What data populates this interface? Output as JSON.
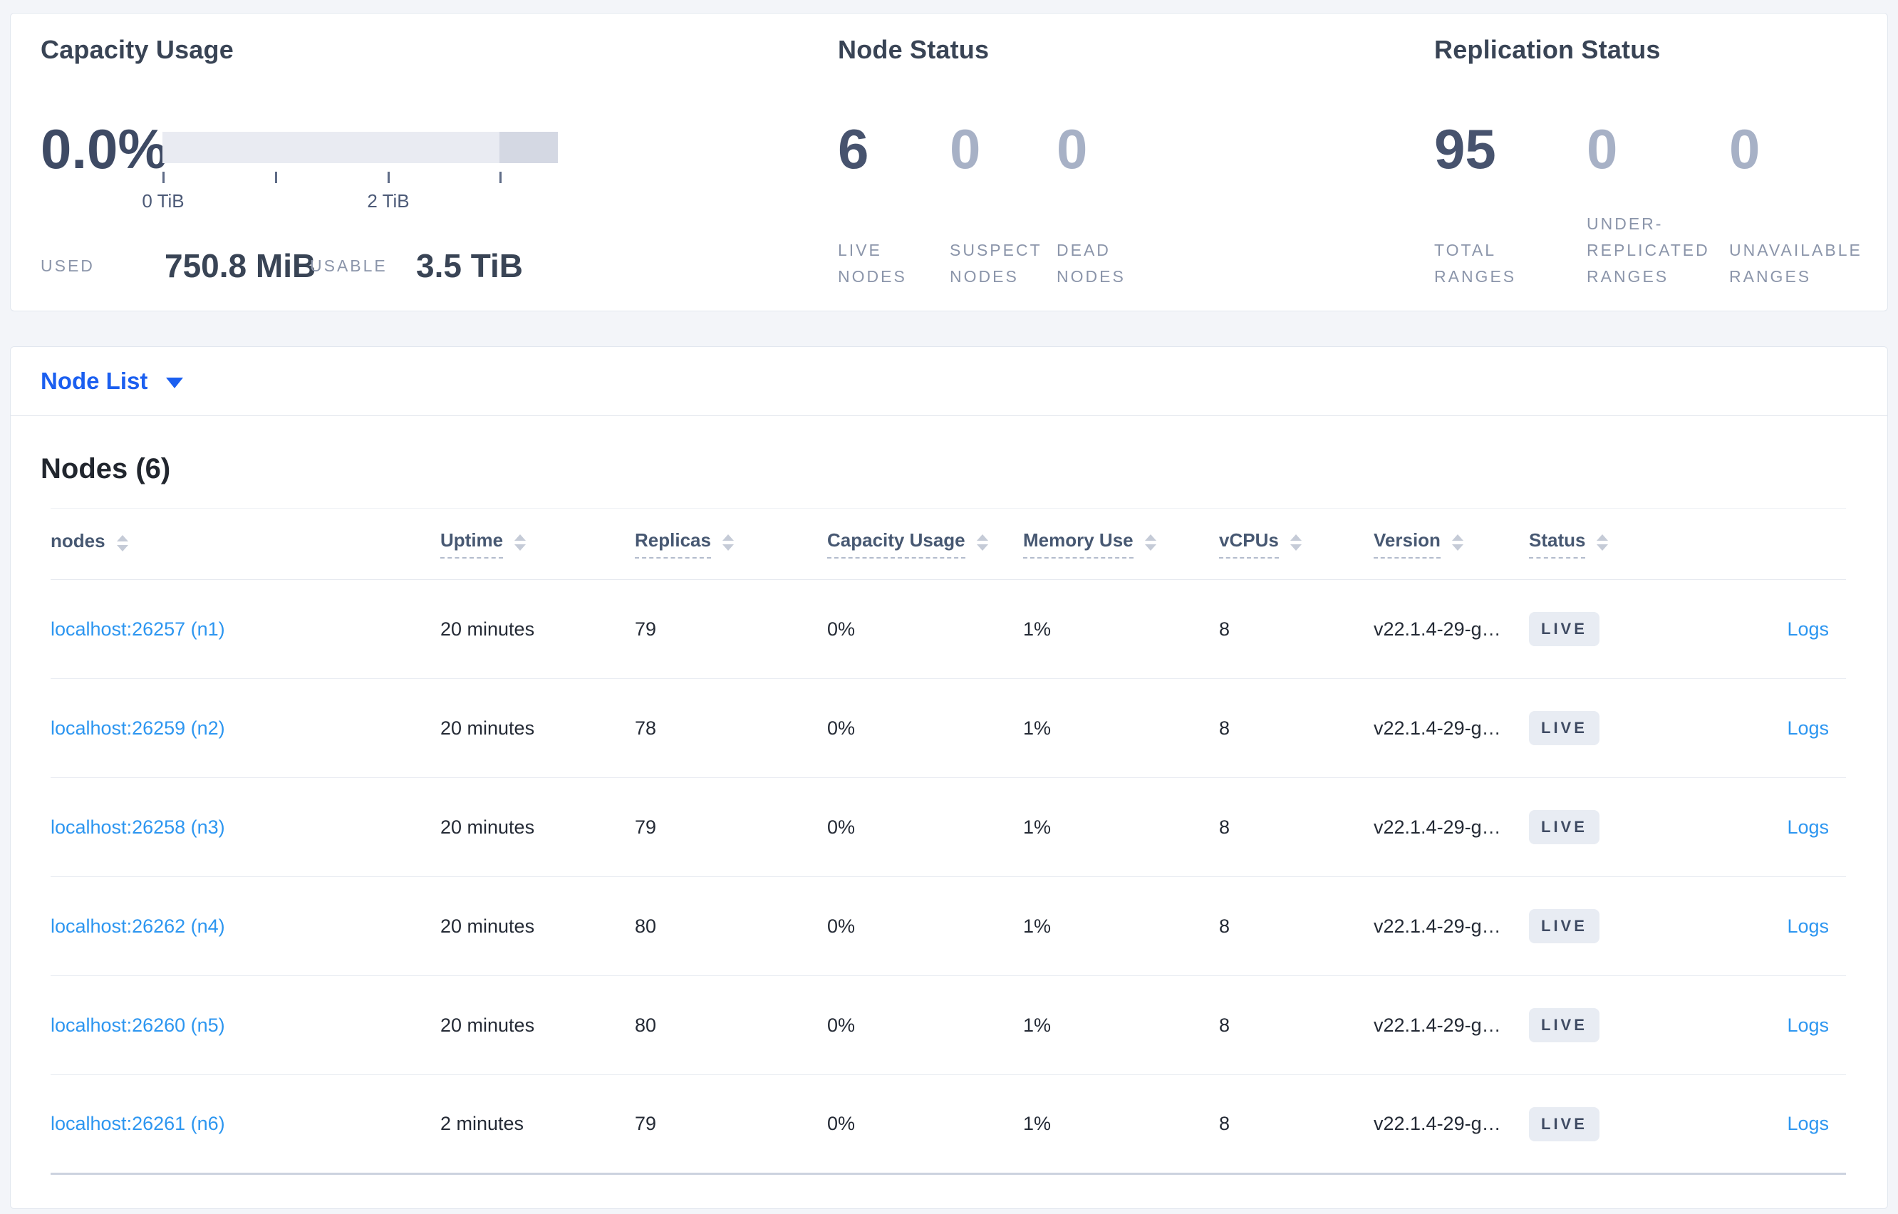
{
  "summary": {
    "capacity": {
      "title": "Capacity Usage",
      "percent": "0.0%",
      "ticks": [
        {
          "pos": 0,
          "label": "0 TiB"
        },
        {
          "pos": 158,
          "label": ""
        },
        {
          "pos": 316,
          "label": "2 TiB"
        },
        {
          "pos": 473,
          "label": ""
        }
      ],
      "used_label": "USED",
      "used_value": "750.8 MiB",
      "usable_label": "USABLE",
      "usable_value": "3.5 TiB"
    },
    "node_status": {
      "title": "Node Status",
      "stats": [
        {
          "value": "6",
          "label": "LIVE NODES",
          "muted": false
        },
        {
          "value": "0",
          "label": "SUSPECT NODES",
          "muted": true
        },
        {
          "value": "0",
          "label": "DEAD NODES",
          "muted": true
        }
      ]
    },
    "replication_status": {
      "title": "Replication Status",
      "stats": [
        {
          "value": "95",
          "label": "TOTAL RANGES",
          "muted": false
        },
        {
          "value": "0",
          "label": "UNDER-REPLICATED RANGES",
          "muted": true
        },
        {
          "value": "0",
          "label": "UNAVAILABLE RANGES",
          "muted": true
        }
      ]
    }
  },
  "node_list": {
    "dropdown_label": "Node List",
    "heading": "Nodes (6)",
    "columns": [
      {
        "label": "nodes",
        "underlined": false
      },
      {
        "label": "Uptime",
        "underlined": true
      },
      {
        "label": "Replicas",
        "underlined": true
      },
      {
        "label": "Capacity Usage",
        "underlined": true
      },
      {
        "label": "Memory Use",
        "underlined": true
      },
      {
        "label": "vCPUs",
        "underlined": true
      },
      {
        "label": "Version",
        "underlined": true
      },
      {
        "label": "Status",
        "underlined": true
      }
    ],
    "logs_label": "Logs",
    "rows": [
      {
        "node": "localhost:26257 (n1)",
        "uptime": "20 minutes",
        "replicas": "79",
        "capacity_usage": "0%",
        "memory_use": "1%",
        "vcpus": "8",
        "version": "v22.1.4-29-g…",
        "status": "LIVE"
      },
      {
        "node": "localhost:26259 (n2)",
        "uptime": "20 minutes",
        "replicas": "78",
        "capacity_usage": "0%",
        "memory_use": "1%",
        "vcpus": "8",
        "version": "v22.1.4-29-g…",
        "status": "LIVE"
      },
      {
        "node": "localhost:26258 (n3)",
        "uptime": "20 minutes",
        "replicas": "79",
        "capacity_usage": "0%",
        "memory_use": "1%",
        "vcpus": "8",
        "version": "v22.1.4-29-g…",
        "status": "LIVE"
      },
      {
        "node": "localhost:26262 (n4)",
        "uptime": "20 minutes",
        "replicas": "80",
        "capacity_usage": "0%",
        "memory_use": "1%",
        "vcpus": "8",
        "version": "v22.1.4-29-g…",
        "status": "LIVE"
      },
      {
        "node": "localhost:26260 (n5)",
        "uptime": "20 minutes",
        "replicas": "80",
        "capacity_usage": "0%",
        "memory_use": "1%",
        "vcpus": "8",
        "version": "v22.1.4-29-g…",
        "status": "LIVE"
      },
      {
        "node": "localhost:26261 (n6)",
        "uptime": "2 minutes",
        "replicas": "79",
        "capacity_usage": "0%",
        "memory_use": "1%",
        "vcpus": "8",
        "version": "v22.1.4-29-g…",
        "status": "LIVE"
      }
    ]
  },
  "colors": {
    "accent_blue": "#1b5ff0",
    "link_blue": "#2d96f0",
    "badge_bg": "#e8ecf3",
    "bar_light": "#e9ebf2",
    "bar_dark": "#d4d8e3",
    "muted_number": "#a7b1c6"
  }
}
